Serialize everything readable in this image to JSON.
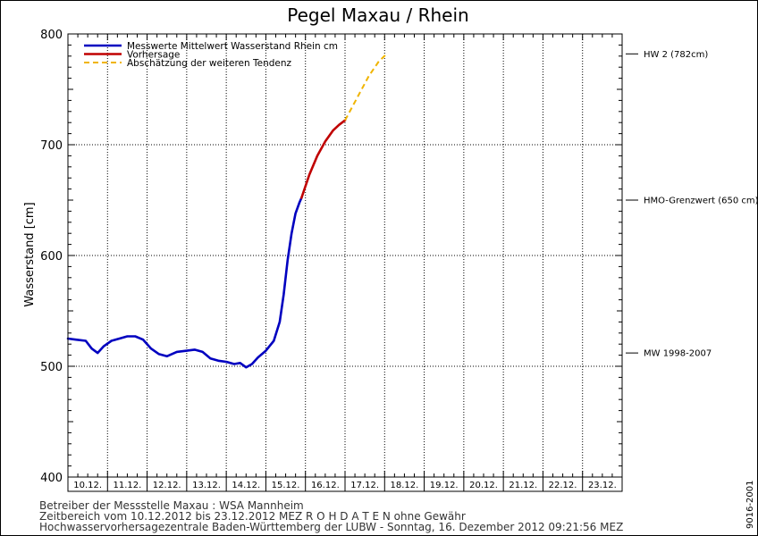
{
  "chart_data": {
    "type": "line",
    "title": "Pegel Maxau / Rhein",
    "ylabel": "Wasserstand [cm]",
    "xlabel": "",
    "ylim": [
      400,
      800
    ],
    "xlim_days": [
      10,
      24
    ],
    "yticks": [
      400,
      500,
      600,
      700,
      800
    ],
    "day_labels": [
      "10.12.",
      "11.12.",
      "12.12.",
      "13.12.",
      "14.12.",
      "15.12.",
      "16.12.",
      "17.12.",
      "18.12.",
      "19.12.",
      "20.12.",
      "21.12.",
      "22.12.",
      "23.12."
    ],
    "grid": true,
    "legend_position": "top-left",
    "series": [
      {
        "name": "Messwerte Mittelwert Wasserstand Rhein cm",
        "color": "#0000c0",
        "style": "solid",
        "points": [
          [
            10.0,
            525
          ],
          [
            10.2,
            524
          ],
          [
            10.45,
            523
          ],
          [
            10.6,
            516
          ],
          [
            10.75,
            512
          ],
          [
            10.9,
            518
          ],
          [
            11.1,
            523
          ],
          [
            11.3,
            525
          ],
          [
            11.5,
            527
          ],
          [
            11.7,
            527
          ],
          [
            11.9,
            524
          ],
          [
            12.1,
            516
          ],
          [
            12.3,
            511
          ],
          [
            12.5,
            509
          ],
          [
            12.75,
            513
          ],
          [
            13.0,
            514
          ],
          [
            13.2,
            515
          ],
          [
            13.4,
            513
          ],
          [
            13.6,
            507
          ],
          [
            13.8,
            505
          ],
          [
            14.0,
            504
          ],
          [
            14.2,
            502
          ],
          [
            14.35,
            503
          ],
          [
            14.5,
            499
          ],
          [
            14.65,
            502
          ],
          [
            14.8,
            508
          ],
          [
            15.0,
            514
          ],
          [
            15.2,
            523
          ],
          [
            15.35,
            540
          ],
          [
            15.45,
            565
          ],
          [
            15.55,
            596
          ],
          [
            15.65,
            620
          ],
          [
            15.75,
            638
          ],
          [
            15.85,
            648
          ],
          [
            15.9,
            652
          ]
        ]
      },
      {
        "name": "Vorhersage",
        "color": "#c00000",
        "style": "solid",
        "points": [
          [
            15.9,
            652
          ],
          [
            16.1,
            673
          ],
          [
            16.3,
            690
          ],
          [
            16.5,
            703
          ],
          [
            16.7,
            713
          ],
          [
            16.85,
            718
          ],
          [
            17.0,
            722
          ]
        ]
      },
      {
        "name": "Abschätzung der weiteren Tendenz",
        "color": "#f0b400",
        "style": "dashed",
        "points": [
          [
            17.0,
            722
          ],
          [
            17.3,
            742
          ],
          [
            17.6,
            762
          ],
          [
            17.85,
            775
          ],
          [
            18.05,
            782
          ]
        ]
      }
    ],
    "reference_lines": [
      {
        "label": "HW 2 (782cm)",
        "value": 782
      },
      {
        "label": "HMO-Grenzwert (650 cm)",
        "value": 650
      },
      {
        "label": "MW 1998-2007",
        "value": 512
      }
    ]
  },
  "footer": {
    "line1": "Betreiber der Messstelle Maxau : WSA Mannheim",
    "line2": "Zeitbereich vom 10.12.2012 bis 23.12.2012    MEZ     R O H D A T E N ohne Gewähr",
    "line3": "Hochwasservorhersagezentrale Baden-Württemberg der LUBW - Sonntag, 16. Dezember 2012 09:21:56 MEZ"
  },
  "side_code": "9016-2001"
}
